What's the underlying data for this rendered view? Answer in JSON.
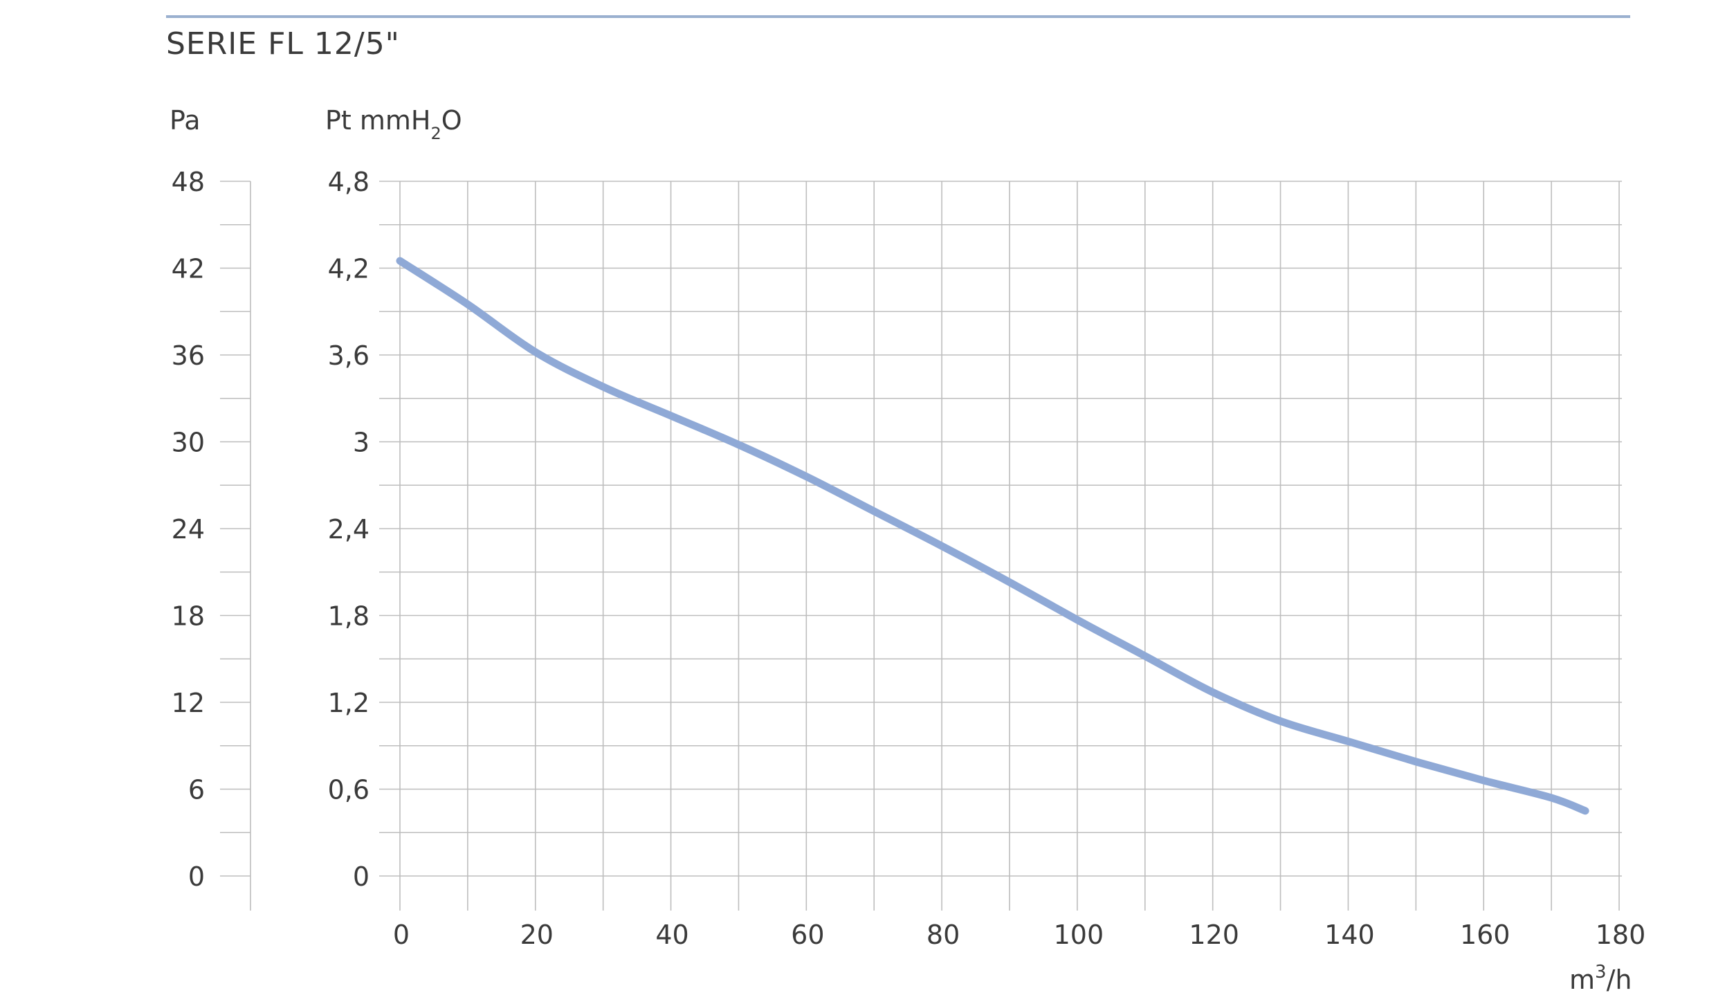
{
  "title": "SERIE FL 12/5\"",
  "units": {
    "pa": "Pa",
    "pt_prefix": "Pt mmH",
    "pt_sub": "2",
    "pt_suffix": "O",
    "q_prefix": "m",
    "q_sup": "3",
    "q_suffix": "/h"
  },
  "colors": {
    "curve": "#8fa9d6",
    "grid": "#bdbdbd",
    "rule": "#9ab0cf",
    "text": "#3a3a3a"
  },
  "chart_data": {
    "type": "line",
    "title": "SERIE FL 12/5\"",
    "xlabel": "m3/h",
    "ylabel": "Pt mmH2O",
    "ylabel_secondary": "Pa",
    "xlim": [
      0,
      180
    ],
    "ylim": [
      0,
      4.8
    ],
    "ylim_secondary": [
      0,
      48
    ],
    "x_ticks": [
      "0",
      "20",
      "40",
      "60",
      "80",
      "100",
      "120",
      "140",
      "160",
      "180"
    ],
    "x_tick_values": [
      0,
      20,
      40,
      60,
      80,
      100,
      120,
      140,
      160,
      180
    ],
    "y_ticks": [
      "0",
      "0,6",
      "1,2",
      "1,8",
      "2,4",
      "3",
      "3,6",
      "4,2",
      "4,8"
    ],
    "y_tick_values": [
      0,
      0.6,
      1.2,
      1.8,
      2.4,
      3.0,
      3.6,
      4.2,
      4.8
    ],
    "y2_ticks": [
      "0",
      "6",
      "12",
      "18",
      "24",
      "30",
      "36",
      "42",
      "48"
    ],
    "grid": true,
    "series": [
      {
        "x": [
          0,
          10,
          20,
          30,
          40,
          50,
          60,
          70,
          80,
          90,
          100,
          110,
          120,
          130,
          140,
          150,
          160,
          170,
          175
        ],
        "y": [
          4.25,
          3.95,
          3.62,
          3.38,
          3.18,
          2.98,
          2.76,
          2.52,
          2.28,
          2.03,
          1.77,
          1.52,
          1.27,
          1.07,
          0.93,
          0.79,
          0.66,
          0.54,
          0.45
        ]
      }
    ]
  }
}
